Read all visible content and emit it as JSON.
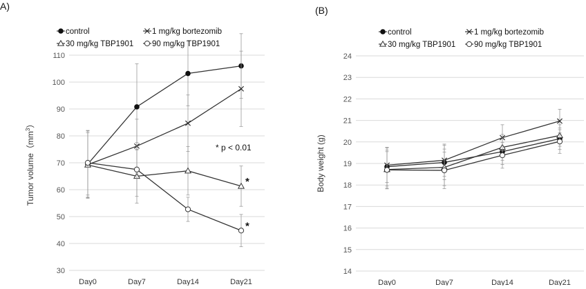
{
  "chart_data": [
    {
      "panel_label": "A)",
      "type": "line",
      "categories": [
        "Day0",
        "Day7",
        "Day14",
        "Day21"
      ],
      "ylabel_main": "Tumor volume（mm",
      "ylabel_sup": "3",
      "ylabel_end": "）",
      "ylim": [
        30,
        110
      ],
      "yticks": [
        30,
        40,
        50,
        60,
        70,
        80,
        90,
        100,
        110
      ],
      "annotation": "* p < 0.01",
      "significance_mark": "*",
      "series": [
        {
          "name": "control",
          "marker": "filled-circle",
          "values": [
            69.5,
            90.8,
            103.2,
            106.0
          ],
          "err": [
            12.5,
            16.0,
            12.0,
            12.0
          ],
          "significant": false
        },
        {
          "name": "1 mg/kg bortezomib",
          "marker": "x",
          "values": [
            69.3,
            76.2,
            84.7,
            97.5
          ],
          "err": [
            12.5,
            10.0,
            10.5,
            14.0
          ],
          "significant": false
        },
        {
          "name": "30 mg/kg TBP1901",
          "marker": "triangle",
          "values": [
            69.2,
            65.0,
            67.0,
            61.3
          ],
          "err": [
            12.0,
            10.0,
            9.0,
            7.5
          ],
          "significant": true
        },
        {
          "name": "90 mg/kg TBP1901",
          "marker": "open-circle",
          "values": [
            70.0,
            67.5,
            52.7,
            44.8
          ],
          "err": [
            12.0,
            10.0,
            4.5,
            6.0
          ],
          "significant": true
        }
      ]
    },
    {
      "panel_label": "(B)",
      "type": "line",
      "categories": [
        "Day0",
        "Day7",
        "Day14",
        "Day21"
      ],
      "ylabel_main": "Body weight (g)",
      "ylabel_sup": "",
      "ylabel_end": "",
      "ylim": [
        14,
        24
      ],
      "yticks": [
        14,
        15,
        16,
        17,
        18,
        19,
        20,
        21,
        22,
        23,
        24
      ],
      "annotation": "",
      "significance_mark": "",
      "series": [
        {
          "name": "control",
          "marker": "filled-circle",
          "values": [
            18.85,
            19.05,
            19.55,
            20.15
          ],
          "err": [
            0.9,
            0.8,
            0.6,
            0.5
          ],
          "significant": false
        },
        {
          "name": "1 mg/kg bortezomib",
          "marker": "x",
          "values": [
            18.92,
            19.15,
            20.2,
            20.97
          ],
          "err": [
            0.8,
            0.75,
            0.6,
            0.55
          ],
          "significant": false
        },
        {
          "name": "30 mg/kg TBP1901",
          "marker": "triangle",
          "values": [
            18.72,
            18.82,
            19.75,
            20.3
          ],
          "err": [
            0.9,
            0.85,
            0.6,
            0.5
          ],
          "significant": false
        },
        {
          "name": "90 mg/kg TBP1901",
          "marker": "open-circle",
          "values": [
            18.7,
            18.68,
            19.38,
            20.02
          ],
          "err": [
            0.85,
            0.85,
            0.6,
            0.55
          ],
          "significant": false
        }
      ]
    }
  ]
}
